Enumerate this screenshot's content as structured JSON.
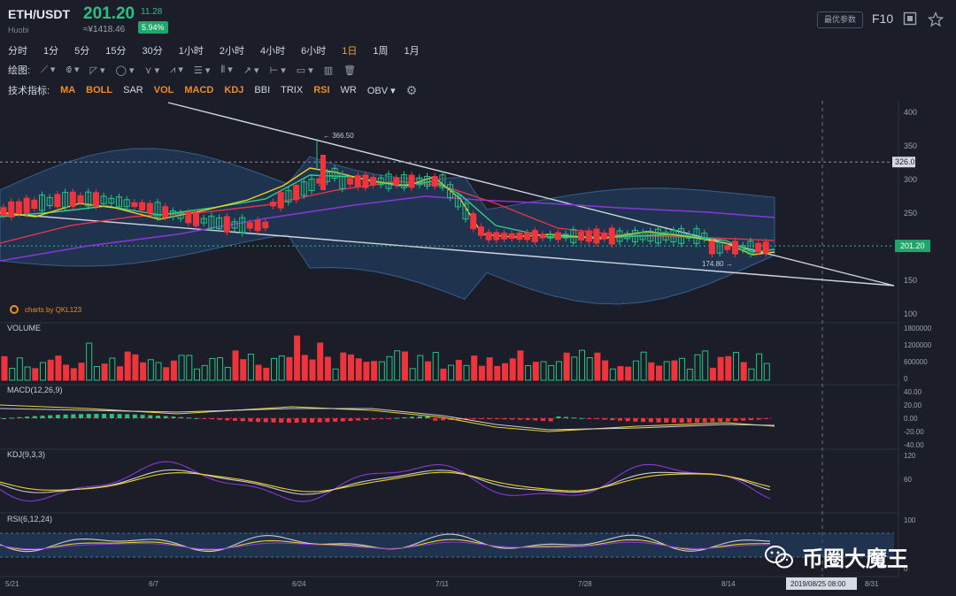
{
  "header": {
    "pair": "ETH/USDT",
    "exchange": "Huobi",
    "price": "201.20",
    "cny": "≈¥1418.46",
    "change": "11.28",
    "change_pct": "5.94%",
    "params_btn": "最优参数",
    "f10": "F10"
  },
  "timeframes": [
    {
      "label": "分时"
    },
    {
      "label": "1分"
    },
    {
      "label": "5分"
    },
    {
      "label": "15分"
    },
    {
      "label": "30分"
    },
    {
      "label": "1小时"
    },
    {
      "label": "2小时"
    },
    {
      "label": "4小时"
    },
    {
      "label": "6小时"
    },
    {
      "label": "1日",
      "active": true
    },
    {
      "label": "1周"
    },
    {
      "label": "1月"
    }
  ],
  "draw": {
    "label": "绘图:",
    "tools": [
      "⟋ ▾",
      "⟃ ▾",
      "◸ ▾",
      "◯ ▾",
      "⋎ ▾",
      "⩘ ▾",
      "☰ ▾",
      "⦀ ▾",
      "↗ ▾",
      "⊢ ▾",
      "▭ ▾",
      "▥",
      "🗑"
    ]
  },
  "indicators": {
    "label": "技术指标:",
    "items": [
      {
        "label": "MA",
        "on": true
      },
      {
        "label": "BOLL",
        "on": true
      },
      {
        "label": "SAR",
        "on": false
      },
      {
        "label": "VOL",
        "on": true
      },
      {
        "label": "MACD",
        "on": true
      },
      {
        "label": "KDJ",
        "on": true
      },
      {
        "label": "BBI",
        "on": false
      },
      {
        "label": "TRIX",
        "on": false
      },
      {
        "label": "RSI",
        "on": true
      },
      {
        "label": "WR",
        "on": false
      },
      {
        "label": "OBV ▾",
        "on": false
      }
    ]
  },
  "chart": {
    "credit": "charts by QKL123",
    "price_axis": [
      "400",
      "350",
      "300",
      "250",
      "150",
      "100"
    ],
    "high_label": "← 366.50",
    "low_label": "174.80 →",
    "hline_label": "326.0",
    "last_price_label": "201.20",
    "vol_title": "VOLUME",
    "vol_axis": [
      "1800000",
      "1200000",
      "600000",
      "0"
    ],
    "macd_title": "MACD(12,26,9)",
    "macd_axis": [
      "40.00",
      "20.00",
      "0.00",
      "-20.00",
      "-40.00"
    ],
    "kdj_title": "KDJ(9,3,3)",
    "kdj_axis": [
      "120",
      "60"
    ],
    "rsi_title": "RSI(6,12,24)",
    "rsi_axis": [
      "100",
      "0"
    ],
    "dates": [
      "5/21",
      "6/7",
      "6/24",
      "7/11",
      "7/28",
      "8/14",
      "8/31"
    ],
    "cursor_date": "2019/08/25 08:00"
  },
  "watermark": "币圈大魔王",
  "colors": {
    "up": "#26c281",
    "down": "#f0343c",
    "accent": "#f08a24"
  }
}
